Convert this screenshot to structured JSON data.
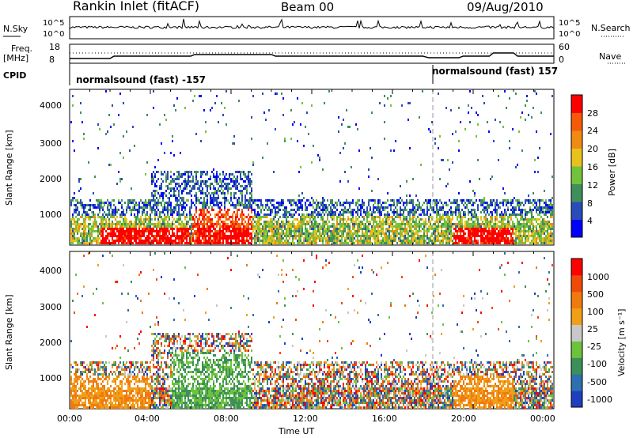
{
  "header": {
    "station": "Rankin Inlet (fitACF)",
    "beam": "Beam 00",
    "date": "09/Aug/2010"
  },
  "top_panels": {
    "nsky_label": "N.Sky",
    "nsky_ticks": [
      "10^5",
      "10^0"
    ],
    "nsearch_label": "N.Search",
    "nsearch_ticks": [
      "10^5",
      "10^0"
    ],
    "freq_label": "Freq.",
    "freq_units": "[MHz]",
    "freq_ticks": [
      "18",
      "8"
    ],
    "nave_label": "Nave",
    "nave_ticks": [
      "60",
      "0"
    ],
    "cpid_label": "CPID",
    "cpid_segments": [
      {
        "label": "normalsound (fast) -157",
        "start_hour": 0
      },
      {
        "label": "normalsound (fast) 157",
        "start_hour": 18
      }
    ]
  },
  "chart_data": [
    {
      "type": "heatmap",
      "panel": "power",
      "ylabel": "Slant Range [km]",
      "yticks": [
        1000,
        2000,
        3000,
        4000
      ],
      "ylim": [
        180,
        4500
      ],
      "xlim_hours": [
        0,
        24
      ],
      "colorbar_label": "Power [dB]",
      "colorbar_ticks": [
        "28",
        "24",
        "20",
        "16",
        "12",
        "8",
        "4"
      ],
      "colors": [
        "#0000ff",
        "#2a4cb8",
        "#3f8f5a",
        "#73c23c",
        "#e8c21c",
        "#f08a12",
        "#f55a0a",
        "#ff0000"
      ]
    },
    {
      "type": "heatmap",
      "panel": "velocity",
      "ylabel": "Slant Range [km]",
      "yticks": [
        1000,
        2000,
        3000,
        4000
      ],
      "ylim": [
        180,
        4500
      ],
      "xlim_hours": [
        0,
        24
      ],
      "xticks": [
        "00:00",
        "04:00",
        "08:00",
        "12:00",
        "16:00",
        "20:00",
        "00:00"
      ],
      "xlabel": "Time UT",
      "colorbar_label": "Velocity [m s⁻¹]",
      "colorbar_ticks": [
        "1000",
        "500",
        "100",
        "25",
        "-25",
        "-100",
        "-500",
        "-1000"
      ],
      "colors": [
        "#1f3fbf",
        "#2f6fb0",
        "#3d8f5a",
        "#6cc23c",
        "#c8c8c8",
        "#f0a018",
        "#f07a10",
        "#f04a0a",
        "#ff0000"
      ]
    }
  ]
}
